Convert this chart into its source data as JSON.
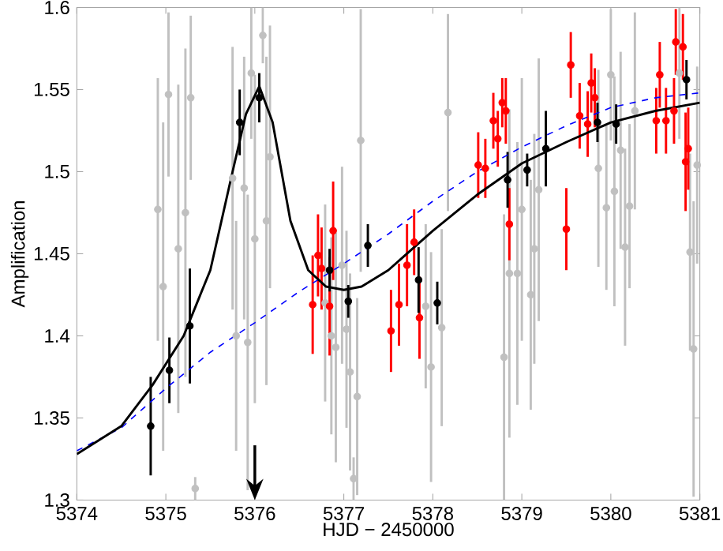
{
  "chart_data": {
    "type": "scatter",
    "xlabel": "HJD − 2450000",
    "ylabel": "Amplification",
    "xlim": [
      5374,
      5381
    ],
    "ylim": [
      1.3,
      1.6
    ],
    "xticks": [
      5374,
      5375,
      5376,
      5377,
      5378,
      5379,
      5380,
      5381
    ],
    "yticks": [
      1.3,
      1.35,
      1.4,
      1.45,
      1.5,
      1.55,
      1.6
    ],
    "marker": "circle",
    "ref_lines": [
      {
        "axis": "x",
        "value": 5376
      }
    ],
    "series": [
      {
        "color": "#c0c0c0",
        "x": [
          5374.91,
          5374.97,
          5375.03,
          5375.14,
          5375.22,
          5375.28,
          5375.33,
          5375.75,
          5375.79,
          5375.88,
          5375.92,
          5375.96,
          5376.0,
          5376.13,
          5376.09,
          5376.17,
          5376.79,
          5376.86,
          5376.91,
          5376.98,
          5377.03,
          5377.07,
          5377.11,
          5377.15,
          5377.19,
          5377.92,
          5377.98,
          5378.1,
          5378.17,
          5378.8,
          5378.86,
          5378.95,
          5379.0,
          5379.1,
          5379.14,
          5379.19,
          5379.86,
          5379.95,
          5380.0,
          5380.04,
          5380.11,
          5380.16,
          5380.21,
          5380.27,
          5380.77,
          5380.89,
          5380.93,
          5380.97
        ],
        "values": [
          1.477,
          1.43,
          1.547,
          1.453,
          1.475,
          1.545,
          1.307,
          1.496,
          1.4,
          1.49,
          1.396,
          1.56,
          1.459,
          1.47,
          1.583,
          1.509,
          1.42,
          1.4,
          1.393,
          1.443,
          1.404,
          1.378,
          1.313,
          1.363,
          1.519,
          1.418,
          1.381,
          1.405,
          1.536,
          1.387,
          1.438,
          1.438,
          1.477,
          1.425,
          1.453,
          1.489,
          1.502,
          1.478,
          1.559,
          1.488,
          1.513,
          1.454,
          1.479,
          1.537,
          1.56,
          1.451,
          1.392,
          1.504
        ],
        "errors": [
          0.08,
          0.1,
          0.05,
          0.1,
          0.1,
          0.05,
          0.007,
          0.08,
          0.07,
          0.08,
          0.09,
          0.04,
          0.1,
          0.1,
          0.017,
          0.08,
          0.06,
          0.06,
          0.07,
          0.06,
          0.06,
          0.06,
          0.013,
          0.06,
          0.08,
          0.05,
          0.07,
          0.06,
          0.06,
          0.087,
          0.1,
          0.08,
          0.08,
          0.07,
          0.07,
          0.08,
          0.06,
          0.05,
          0.04,
          0.07,
          0.06,
          0.06,
          0.05,
          0.06,
          0.04,
          0.06,
          0.09,
          0.06
        ]
      },
      {
        "color": "#ff0000",
        "x": [
          5376.65,
          5376.71,
          5376.75,
          5376.84,
          5376.88,
          5377.53,
          5377.62,
          5377.71,
          5377.79,
          5377.85,
          5378.51,
          5378.59,
          5378.68,
          5378.73,
          5378.78,
          5378.82,
          5378.86,
          5379.5,
          5379.55,
          5379.65,
          5379.74,
          5379.78,
          5379.82,
          5380.51,
          5380.55,
          5380.62,
          5380.71,
          5380.73,
          5380.81,
          5380.84,
          5380.87
        ],
        "values": [
          1.419,
          1.449,
          1.441,
          1.418,
          1.464,
          1.403,
          1.419,
          1.443,
          1.457,
          1.411,
          1.504,
          1.502,
          1.531,
          1.52,
          1.542,
          1.537,
          1.468,
          1.465,
          1.565,
          1.534,
          1.529,
          1.554,
          1.545,
          1.531,
          1.559,
          1.531,
          1.537,
          1.579,
          1.576,
          1.506,
          1.514
        ],
        "errors": [
          0.03,
          0.025,
          0.025,
          0.03,
          0.03,
          0.025,
          0.025,
          0.025,
          0.02,
          0.025,
          0.02,
          0.018,
          0.017,
          0.017,
          0.015,
          0.02,
          0.022,
          0.025,
          0.02,
          0.02,
          0.02,
          0.018,
          0.018,
          0.02,
          0.02,
          0.02,
          0.02,
          0.02,
          0.02,
          0.03,
          0.025
        ]
      },
      {
        "color": "#000000",
        "x": [
          5374.83,
          5375.04,
          5375.27,
          5375.83,
          5376.05,
          5376.84,
          5377.05,
          5377.27,
          5377.84,
          5378.05,
          5378.84,
          5379.06,
          5379.27,
          5379.85,
          5380.06,
          5380.85
        ],
        "values": [
          1.345,
          1.379,
          1.406,
          1.53,
          1.545,
          1.44,
          1.421,
          1.455,
          1.434,
          1.42,
          1.495,
          1.501,
          1.514,
          1.53,
          1.529,
          1.556
        ],
        "errors": [
          0.03,
          0.02,
          0.035,
          0.02,
          0.015,
          0.013,
          0.01,
          0.013,
          0.02,
          0.013,
          0.017,
          0.01,
          0.023,
          0.012,
          0.012,
          0.012
        ]
      },
      {
        "type": "line",
        "color": "#0000ff",
        "marker": "none",
        "line_style": "dashed",
        "x": [
          5374,
          5374.5,
          5375,
          5375.5,
          5376,
          5376.5,
          5377,
          5377.5,
          5378,
          5378.5,
          5379,
          5379.5,
          5380,
          5380.5,
          5381
        ],
        "values": [
          1.33,
          1.344,
          1.368,
          1.39,
          1.408,
          1.427,
          1.444,
          1.462,
          1.482,
          1.5,
          1.515,
          1.528,
          1.539,
          1.545,
          1.548
        ]
      },
      {
        "type": "line",
        "color": "#000000",
        "marker": "none",
        "line_style": "solid",
        "x": [
          5374,
          5374.5,
          5374.85,
          5375.2,
          5375.5,
          5375.75,
          5375.9,
          5376.05,
          5376.2,
          5376.4,
          5376.6,
          5376.8,
          5377,
          5377.2,
          5377.5,
          5378,
          5378.5,
          5379,
          5379.5,
          5380,
          5380.5,
          5381
        ],
        "values": [
          1.328,
          1.345,
          1.37,
          1.4,
          1.44,
          1.5,
          1.535,
          1.552,
          1.53,
          1.47,
          1.44,
          1.43,
          1.428,
          1.43,
          1.44,
          1.464,
          1.486,
          1.505,
          1.518,
          1.53,
          1.537,
          1.542
        ]
      }
    ]
  }
}
